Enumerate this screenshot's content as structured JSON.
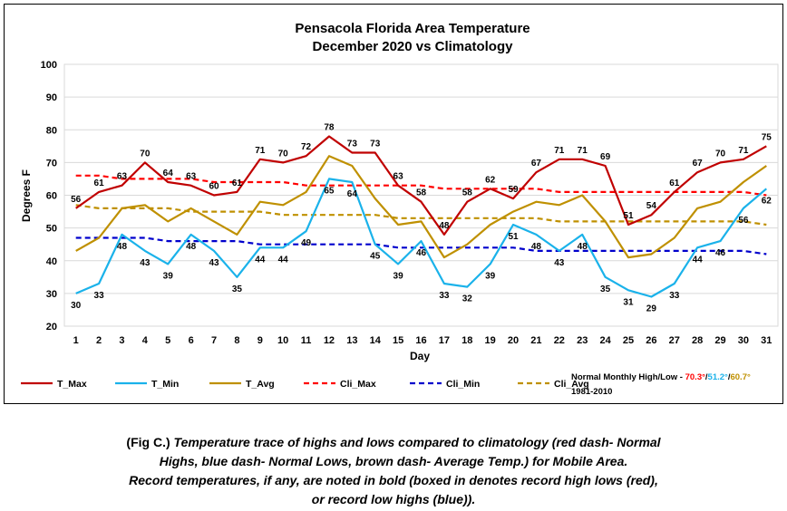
{
  "chart_data": {
    "type": "line",
    "title": "Pensacola Florida Area Temperature",
    "subtitle": "December 2020 vs Climatology",
    "xlabel": "Day",
    "ylabel": "Degrees F",
    "ylim": [
      20,
      100
    ],
    "yticks": [
      20,
      30,
      40,
      50,
      60,
      70,
      80,
      90,
      100
    ],
    "grid": true,
    "legend_position": "bottom",
    "x": [
      1,
      2,
      3,
      4,
      5,
      6,
      7,
      8,
      9,
      10,
      11,
      12,
      13,
      14,
      15,
      16,
      17,
      18,
      19,
      20,
      21,
      22,
      23,
      24,
      25,
      26,
      27,
      28,
      29,
      30,
      31
    ],
    "series": [
      {
        "name": "T_Max",
        "style": "solid",
        "color": "#c00000",
        "labeled": true,
        "values": [
          56,
          61,
          63,
          70,
          64,
          63,
          60,
          61,
          71,
          70,
          72,
          78,
          73,
          73,
          63,
          58,
          48,
          58,
          62,
          59,
          67,
          71,
          71,
          69,
          51,
          54,
          61,
          67,
          70,
          71,
          75
        ]
      },
      {
        "name": "T_Min",
        "style": "solid",
        "color": "#1ab2ea",
        "labeled": true,
        "values": [
          30,
          33,
          48,
          43,
          39,
          48,
          43,
          35,
          44,
          44,
          49,
          65,
          64,
          45,
          39,
          46,
          33,
          32,
          39,
          51,
          48,
          43,
          48,
          35,
          31,
          29,
          33,
          44,
          46,
          56,
          62
        ]
      },
      {
        "name": "T_Avg",
        "style": "solid",
        "color": "#bf9000",
        "labeled": false,
        "values": [
          43,
          47,
          56,
          57,
          52,
          56,
          52,
          48,
          58,
          57,
          61,
          72,
          69,
          59,
          51,
          52,
          41,
          45,
          51,
          55,
          58,
          57,
          60,
          52,
          41,
          42,
          47,
          56,
          58,
          64,
          69
        ]
      },
      {
        "name": "Cli_Max",
        "style": "dash",
        "color": "#ff0000",
        "labeled": false,
        "values": [
          66,
          66,
          65,
          65,
          65,
          65,
          64,
          64,
          64,
          64,
          63,
          63,
          63,
          63,
          63,
          63,
          62,
          62,
          62,
          62,
          62,
          61,
          61,
          61,
          61,
          61,
          61,
          61,
          61,
          61,
          60
        ]
      },
      {
        "name": "Cli_Min",
        "style": "dash",
        "color": "#0000cc",
        "labeled": false,
        "values": [
          47,
          47,
          47,
          47,
          46,
          46,
          46,
          46,
          45,
          45,
          45,
          45,
          45,
          45,
          44,
          44,
          44,
          44,
          44,
          44,
          43,
          43,
          43,
          43,
          43,
          43,
          43,
          43,
          43,
          43,
          42
        ]
      },
      {
        "name": "Cli_Avg",
        "style": "dash",
        "color": "#bf9000",
        "labeled": false,
        "values": [
          57,
          56,
          56,
          56,
          56,
          55,
          55,
          55,
          55,
          54,
          54,
          54,
          54,
          54,
          53,
          53,
          53,
          53,
          53,
          53,
          53,
          52,
          52,
          52,
          52,
          52,
          52,
          52,
          52,
          52,
          51
        ]
      }
    ]
  },
  "normals_note": {
    "label": "Normal Monthly High/Low - ",
    "high": "70.3°",
    "high_color": "#ff0000",
    "sep1": "/",
    "low": "51.2°",
    "low_color": "#1ab2ea",
    "sep2": "/",
    "avg": "60.7°",
    "avg_color": "#bf9000",
    "period": "1981-2010"
  },
  "caption": {
    "lead": "(Fig C.) ",
    "line1": "Temperature trace of highs and lows compared to climatology (red dash- Normal",
    "line2": "Highs, blue dash- Normal Lows, brown dash- Average Temp.) for Mobile Area.",
    "line3": "Record temperatures, if any, are noted in bold (boxed in denotes record high lows (red),",
    "line4": "or record low highs (blue))."
  }
}
